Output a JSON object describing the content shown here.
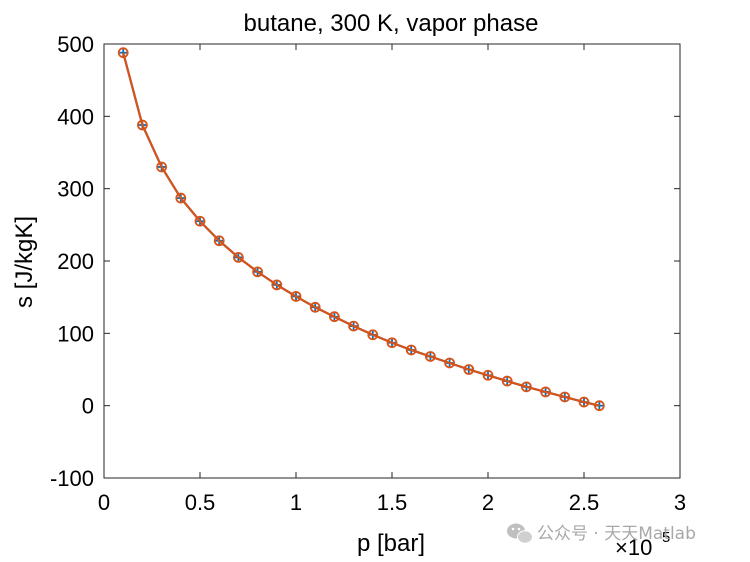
{
  "chart_data": {
    "type": "line",
    "title": "butane, 300 K, vapor phase",
    "xlabel": "p [bar]",
    "ylabel": "s [J/kgK]",
    "x_exponent_label": "×10",
    "x_exponent_power": "5",
    "xlim": [
      0,
      300000
    ],
    "ylim": [
      -100,
      500
    ],
    "xticks": [
      0,
      50000,
      100000,
      150000,
      200000,
      250000,
      300000
    ],
    "xtick_labels": [
      "0",
      "0.5",
      "1",
      "1.5",
      "2",
      "2.5",
      "3"
    ],
    "yticks": [
      -100,
      0,
      100,
      200,
      300,
      400,
      500
    ],
    "ytick_labels": [
      "-100",
      "0",
      "100",
      "200",
      "300",
      "400",
      "500"
    ],
    "grid": false,
    "box": true,
    "x": [
      10000,
      20000,
      30000,
      40000,
      50000,
      60000,
      70000,
      80000,
      90000,
      100000,
      110000,
      120000,
      130000,
      140000,
      150000,
      160000,
      170000,
      180000,
      190000,
      200000,
      210000,
      220000,
      230000,
      240000,
      250000,
      258000
    ],
    "series": [
      {
        "values": [
          488,
          388,
          330,
          287,
          255,
          228,
          205,
          185,
          167,
          151,
          136,
          123,
          110,
          98,
          87,
          77,
          68,
          59,
          50,
          42,
          34,
          26,
          19,
          12,
          5,
          0
        ],
        "color": "#0072BD",
        "marker": "plus"
      },
      {
        "values": [
          488,
          388,
          330,
          287,
          255,
          228,
          205,
          185,
          167,
          151,
          136,
          123,
          110,
          98,
          87,
          77,
          68,
          59,
          50,
          42,
          34,
          26,
          19,
          12,
          5,
          0
        ],
        "color": "#D95319",
        "marker": "circle"
      }
    ]
  },
  "watermark": {
    "text": "公众号 · 天天Matlab",
    "icon": "wechat-icon"
  }
}
